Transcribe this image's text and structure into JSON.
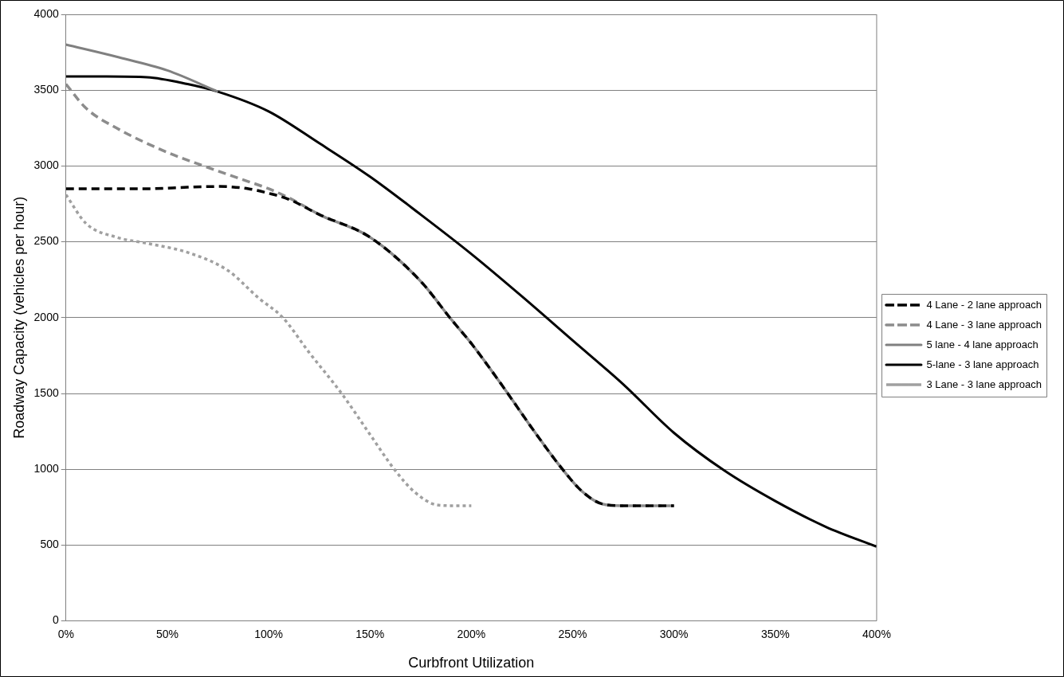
{
  "chart_data": {
    "type": "line",
    "xlabel": "Curbfront Utilization",
    "ylabel": "Roadway Capacity (vehicles per hour)",
    "xlim": [
      0,
      400
    ],
    "xticks": [
      {
        "value": 0,
        "label": "0%"
      },
      {
        "value": 50,
        "label": "50%"
      },
      {
        "value": 100,
        "label": "100%"
      },
      {
        "value": 150,
        "label": "150%"
      },
      {
        "value": 200,
        "label": "200%"
      },
      {
        "value": 250,
        "label": "250%"
      },
      {
        "value": 300,
        "label": "300%"
      },
      {
        "value": 350,
        "label": "350%"
      },
      {
        "value": 400,
        "label": "400%"
      }
    ],
    "ylim": [
      0,
      4000
    ],
    "yticks": [
      0,
      500,
      1000,
      1500,
      2000,
      2500,
      3000,
      3500,
      4000
    ],
    "grid": "y",
    "legend": "right",
    "marker": "none",
    "series": [
      {
        "name": "4 Lane - 2 lane approach",
        "color": "#000000",
        "line_style": "dashed",
        "x": [
          0,
          40,
          60,
          75,
          90,
          100,
          110,
          125,
          150,
          175,
          190,
          200,
          210,
          218,
          230,
          245,
          255,
          265,
          275,
          300
        ],
        "values": [
          2850,
          2850,
          2860,
          2865,
          2850,
          2820,
          2780,
          2680,
          2530,
          2240,
          1990,
          1830,
          1650,
          1500,
          1270,
          1000,
          850,
          770,
          760,
          760
        ]
      },
      {
        "name": "4 Lane - 3 lane approach",
        "color": "#8c8c8c",
        "line_style": "dashed",
        "x": [
          0,
          10,
          25,
          50,
          68,
          85,
          100,
          110,
          125,
          150,
          175,
          190,
          200,
          210,
          218,
          230,
          245,
          255,
          265,
          275,
          300
        ],
        "values": [
          3540,
          3380,
          3250,
          3090,
          3000,
          2920,
          2850,
          2790,
          2680,
          2530,
          2240,
          1990,
          1830,
          1650,
          1500,
          1270,
          1000,
          850,
          770,
          760,
          760
        ]
      },
      {
        "name": "5 lane - 4 lane approach",
        "color": "#808080",
        "line_style": "solid",
        "x": [
          0,
          25,
          50,
          75
        ],
        "values": [
          3800,
          3720,
          3630,
          3490
        ]
      },
      {
        "name": "5-lane - 3 lane approach",
        "color": "#000000",
        "line_style": "solid",
        "x": [
          0,
          20,
          40,
          60,
          75,
          100,
          125,
          150,
          175,
          200,
          225,
          250,
          275,
          300,
          325,
          350,
          375,
          400
        ],
        "values": [
          3590,
          3590,
          3585,
          3540,
          3490,
          3360,
          3150,
          2930,
          2680,
          2420,
          2140,
          1850,
          1560,
          1240,
          990,
          790,
          620,
          490
        ]
      },
      {
        "name": "3 Lane - 3 lane approach",
        "color": "#a0a0a0",
        "line_style": "dotted",
        "x": [
          0,
          10,
          25,
          40,
          60,
          80,
          95,
          107,
          120,
          136,
          150,
          162,
          172,
          183,
          190,
          200
        ],
        "values": [
          2810,
          2620,
          2530,
          2490,
          2430,
          2310,
          2130,
          2000,
          1770,
          1500,
          1230,
          1000,
          850,
          765,
          760,
          760
        ]
      }
    ]
  }
}
